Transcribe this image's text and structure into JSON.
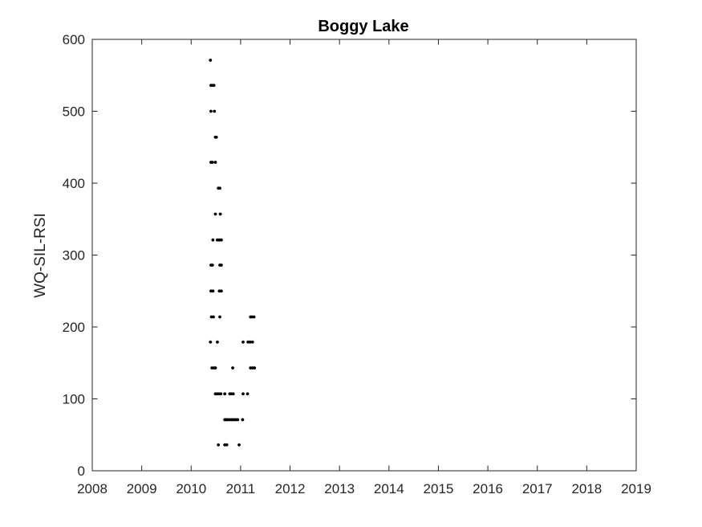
{
  "chart_data": {
    "type": "scatter",
    "title": "Boggy Lake",
    "xlabel": "",
    "ylabel": "WQ-SIL-RSI",
    "xlim": [
      2008,
      2019
    ],
    "ylim": [
      0,
      600
    ],
    "xticks": [
      "2008",
      "2009",
      "2010",
      "2011",
      "2012",
      "2013",
      "2014",
      "2015",
      "2016",
      "2017",
      "2018",
      "2019"
    ],
    "yticks": [
      "0",
      "100",
      "200",
      "300",
      "400",
      "500",
      "600"
    ],
    "grid": false,
    "marker_color": "#000000",
    "points": [
      {
        "x": 2010.39,
        "y": 571
      },
      {
        "x": 2010.4,
        "y": 536
      },
      {
        "x": 2010.43,
        "y": 536
      },
      {
        "x": 2010.46,
        "y": 536
      },
      {
        "x": 2010.4,
        "y": 500
      },
      {
        "x": 2010.47,
        "y": 500
      },
      {
        "x": 2010.49,
        "y": 464
      },
      {
        "x": 2010.51,
        "y": 464
      },
      {
        "x": 2010.4,
        "y": 429
      },
      {
        "x": 2010.43,
        "y": 429
      },
      {
        "x": 2010.49,
        "y": 429
      },
      {
        "x": 2010.55,
        "y": 393
      },
      {
        "x": 2010.58,
        "y": 393
      },
      {
        "x": 2010.49,
        "y": 357
      },
      {
        "x": 2010.59,
        "y": 357
      },
      {
        "x": 2010.44,
        "y": 321
      },
      {
        "x": 2010.53,
        "y": 321
      },
      {
        "x": 2010.57,
        "y": 321
      },
      {
        "x": 2010.61,
        "y": 321
      },
      {
        "x": 2010.4,
        "y": 286
      },
      {
        "x": 2010.43,
        "y": 286
      },
      {
        "x": 2010.58,
        "y": 286
      },
      {
        "x": 2010.61,
        "y": 286
      },
      {
        "x": 2010.4,
        "y": 250
      },
      {
        "x": 2010.44,
        "y": 250
      },
      {
        "x": 2010.57,
        "y": 250
      },
      {
        "x": 2010.61,
        "y": 250
      },
      {
        "x": 2010.41,
        "y": 214
      },
      {
        "x": 2010.45,
        "y": 214
      },
      {
        "x": 2010.58,
        "y": 214
      },
      {
        "x": 2011.2,
        "y": 214
      },
      {
        "x": 2011.23,
        "y": 214
      },
      {
        "x": 2011.27,
        "y": 214
      },
      {
        "x": 2010.39,
        "y": 179
      },
      {
        "x": 2010.53,
        "y": 179
      },
      {
        "x": 2011.05,
        "y": 179
      },
      {
        "x": 2011.15,
        "y": 179
      },
      {
        "x": 2011.19,
        "y": 179
      },
      {
        "x": 2011.24,
        "y": 179
      },
      {
        "x": 2010.42,
        "y": 143
      },
      {
        "x": 2010.46,
        "y": 143
      },
      {
        "x": 2010.49,
        "y": 143
      },
      {
        "x": 2010.84,
        "y": 143
      },
      {
        "x": 2011.2,
        "y": 143
      },
      {
        "x": 2011.24,
        "y": 143
      },
      {
        "x": 2011.28,
        "y": 143
      },
      {
        "x": 2010.49,
        "y": 107
      },
      {
        "x": 2010.52,
        "y": 107
      },
      {
        "x": 2010.56,
        "y": 107
      },
      {
        "x": 2010.6,
        "y": 107
      },
      {
        "x": 2010.68,
        "y": 107
      },
      {
        "x": 2010.78,
        "y": 107
      },
      {
        "x": 2010.81,
        "y": 107
      },
      {
        "x": 2010.85,
        "y": 107
      },
      {
        "x": 2011.05,
        "y": 107
      },
      {
        "x": 2011.14,
        "y": 107
      },
      {
        "x": 2010.68,
        "y": 71
      },
      {
        "x": 2010.71,
        "y": 71
      },
      {
        "x": 2010.74,
        "y": 71
      },
      {
        "x": 2010.78,
        "y": 71
      },
      {
        "x": 2010.82,
        "y": 71
      },
      {
        "x": 2010.86,
        "y": 71
      },
      {
        "x": 2010.9,
        "y": 71
      },
      {
        "x": 2010.94,
        "y": 71
      },
      {
        "x": 2011.04,
        "y": 71
      },
      {
        "x": 2010.55,
        "y": 36
      },
      {
        "x": 2010.68,
        "y": 36
      },
      {
        "x": 2010.72,
        "y": 36
      },
      {
        "x": 2010.97,
        "y": 36
      }
    ]
  }
}
